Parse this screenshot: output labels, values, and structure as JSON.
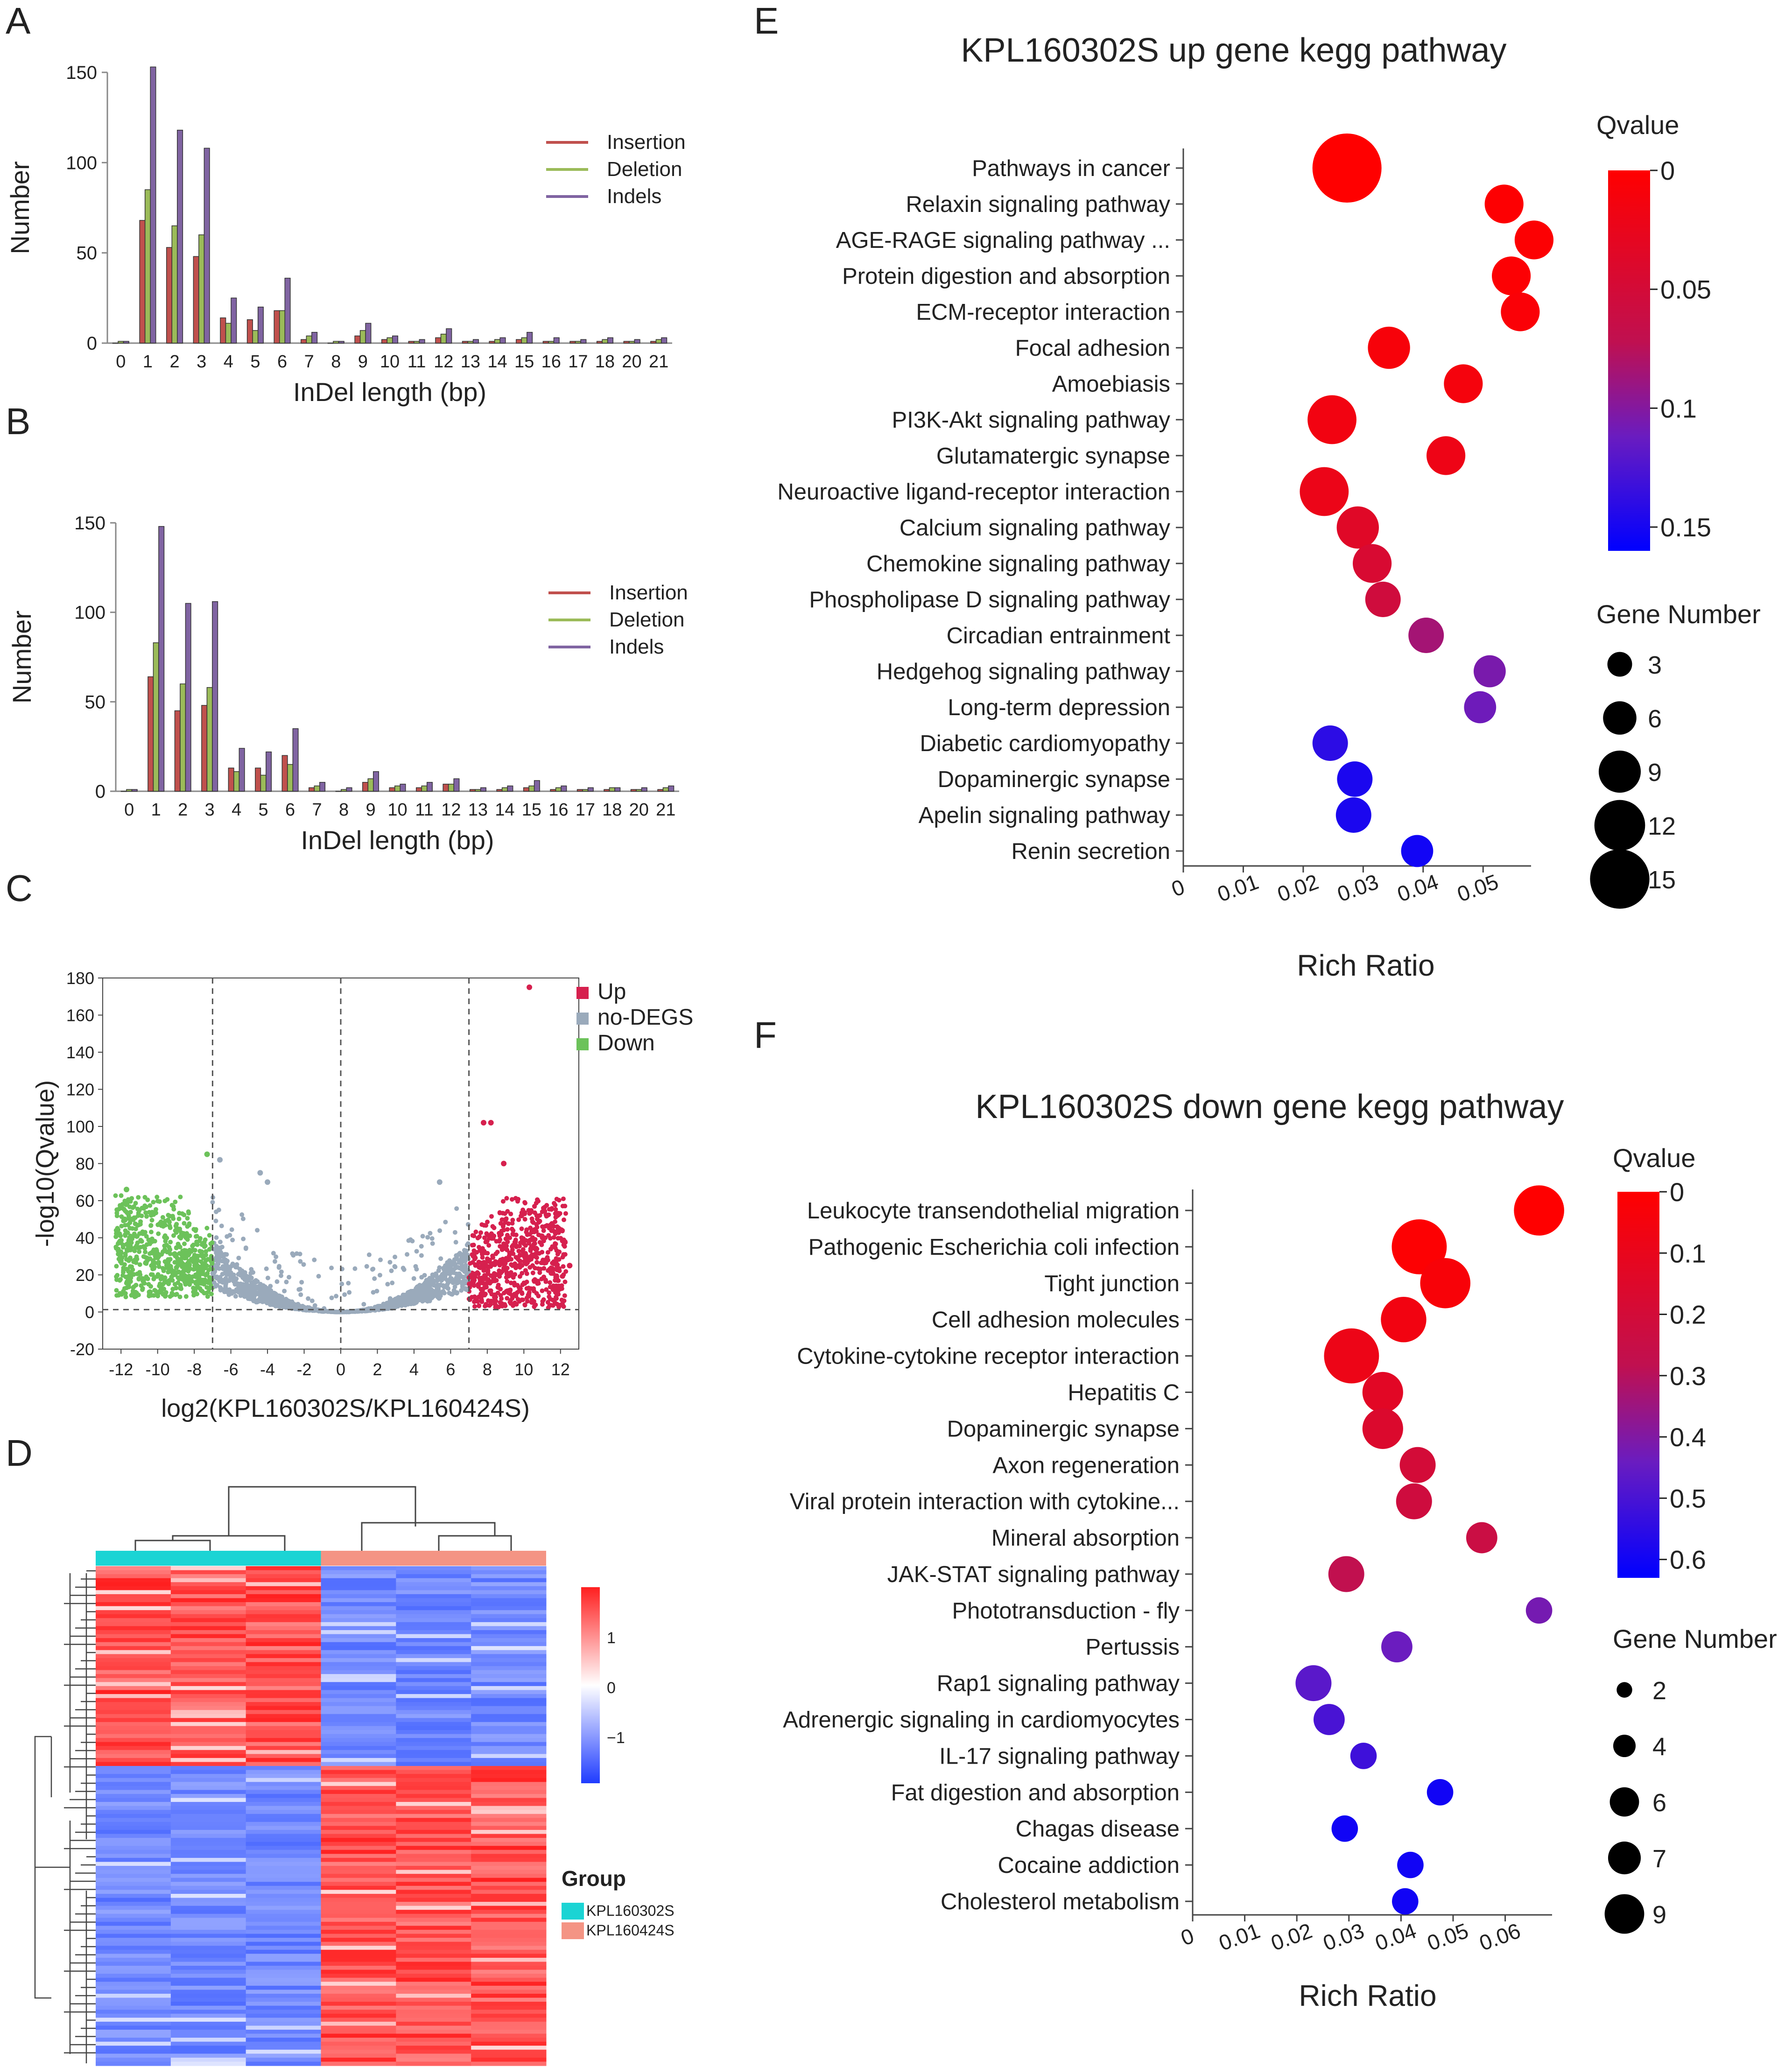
{
  "panel_letters": {
    "A": "A",
    "B": "B",
    "C": "C",
    "D": "D",
    "E": "E",
    "F": "F"
  },
  "colors": {
    "insertion": "#c0504d",
    "deletion": "#9bbb59",
    "indels": "#8064a2",
    "up": "#d6204e",
    "nodegs": "#9aaabb",
    "down": "#6cc25a",
    "heat_high": "#ff2020",
    "heat_low": "#3050ff",
    "group1": "#1bd4d4",
    "group2": "#f49484"
  },
  "chart_data": [
    {
      "id": "A",
      "type": "bar",
      "title": "",
      "xlabel": "InDel length (bp)",
      "ylabel": "Number",
      "ylim": [
        0,
        150
      ],
      "yticks": [
        "0",
        "50",
        "100",
        "150"
      ],
      "categories": [
        "0",
        "1",
        "2",
        "3",
        "4",
        "5",
        "6",
        "7",
        "8",
        "9",
        "10",
        "11",
        "12",
        "13",
        "14",
        "15",
        "16",
        "17",
        "18",
        "20",
        "21"
      ],
      "series": [
        {
          "name": "Insertion",
          "values": [
            0,
            68,
            53,
            48,
            14,
            13,
            18,
            2,
            0,
            4,
            2,
            1,
            3,
            1,
            1,
            2,
            1,
            1,
            1,
            1,
            1
          ]
        },
        {
          "name": "Deletion",
          "values": [
            1,
            85,
            65,
            60,
            11,
            7,
            18,
            4,
            1,
            7,
            3,
            1,
            5,
            1,
            2,
            3,
            1,
            1,
            2,
            1,
            2
          ]
        },
        {
          "name": "Indels",
          "values": [
            1,
            153,
            118,
            108,
            25,
            20,
            36,
            6,
            1,
            11,
            4,
            2,
            8,
            2,
            3,
            6,
            3,
            2,
            3,
            2,
            3
          ]
        }
      ]
    },
    {
      "id": "B",
      "type": "bar",
      "title": "",
      "xlabel": "InDel length (bp)",
      "ylabel": "Number",
      "ylim": [
        0,
        150
      ],
      "yticks": [
        "0",
        "50",
        "100",
        "150"
      ],
      "categories": [
        "0",
        "1",
        "2",
        "3",
        "4",
        "5",
        "6",
        "7",
        "8",
        "9",
        "10",
        "11",
        "12",
        "13",
        "14",
        "15",
        "16",
        "17",
        "18",
        "20",
        "21"
      ],
      "series": [
        {
          "name": "Insertion",
          "values": [
            0,
            64,
            45,
            48,
            13,
            13,
            20,
            2,
            0,
            5,
            2,
            2,
            4,
            1,
            1,
            2,
            1,
            1,
            1,
            1,
            1
          ]
        },
        {
          "name": "Deletion",
          "values": [
            1,
            83,
            60,
            58,
            11,
            9,
            15,
            3,
            1,
            7,
            3,
            3,
            4,
            1,
            2,
            3,
            2,
            1,
            2,
            1,
            2
          ]
        },
        {
          "name": "Indels",
          "values": [
            1,
            148,
            105,
            106,
            24,
            22,
            35,
            5,
            2,
            11,
            4,
            5,
            7,
            2,
            3,
            6,
            3,
            2,
            2,
            2,
            3
          ]
        }
      ]
    },
    {
      "id": "C",
      "type": "scatter",
      "title": "",
      "xlabel": "log2(KPL160302S/KPL160424S)",
      "ylabel": "-log10(Qvalue)",
      "xlim": [
        -13,
        13
      ],
      "ylim": [
        -20,
        180
      ],
      "xticks": [
        "-12",
        "-10",
        "-8",
        "-6",
        "-4",
        "-2",
        "0",
        "2",
        "4",
        "6",
        "8",
        "10",
        "12"
      ],
      "yticks": [
        "-20",
        "0",
        "20",
        "40",
        "60",
        "80",
        "100",
        "120",
        "140",
        "160",
        "180"
      ],
      "thresholds_x": [
        -7,
        0,
        7
      ],
      "threshold_y": 1.3,
      "legend": [
        "Up",
        "no-DEGS",
        "Down"
      ],
      "highlight_points": [
        {
          "x": 10.3,
          "y": 175,
          "group": "Up"
        },
        {
          "x": 7.8,
          "y": 102,
          "group": "Up"
        },
        {
          "x": 8.2,
          "y": 102,
          "group": "Up"
        },
        {
          "x": 8.9,
          "y": 80,
          "group": "Up"
        },
        {
          "x": -11.7,
          "y": 66,
          "group": "Down"
        },
        {
          "x": -7.3,
          "y": 85,
          "group": "Down"
        },
        {
          "x": -6.6,
          "y": 82,
          "group": "no-DEGS"
        },
        {
          "x": -4.4,
          "y": 75,
          "group": "no-DEGS"
        },
        {
          "x": -4.0,
          "y": 70,
          "group": "no-DEGS"
        },
        {
          "x": 5.4,
          "y": 70,
          "group": "no-DEGS"
        },
        {
          "x": 12.5,
          "y": 25,
          "group": "Up"
        },
        {
          "x": 11.5,
          "y": 21,
          "group": "Up"
        }
      ]
    },
    {
      "id": "D",
      "type": "heatmap",
      "title": "",
      "scale_ticks": [
        "1",
        "0",
        "−1"
      ],
      "group_title": "Group",
      "groups": [
        "KPL160302S",
        "KPL160424S"
      ]
    },
    {
      "id": "E",
      "type": "scatter",
      "title": "KPL160302S up gene kegg pathway",
      "xlabel": "Rich Ratio",
      "xlim": [
        0,
        0.058
      ],
      "xticks": [
        "0",
        "0.01",
        "0.02",
        "0.03",
        "0.04",
        "0.05"
      ],
      "color_title": "Qvalue",
      "color_ticks": [
        "0",
        "0.05",
        "0.1",
        "0.15"
      ],
      "size_title": "Gene Number",
      "size_ticks": [
        "3",
        "6",
        "9",
        "12",
        "15"
      ],
      "points": [
        {
          "term": "Pathways in cancer",
          "rich_ratio": 0.0273,
          "q": 0.0,
          "genes": 15
        },
        {
          "term": "Relaxin signaling pathway",
          "rich_ratio": 0.0535,
          "q": 0.002,
          "genes": 6
        },
        {
          "term": "AGE-RAGE signaling pathway ...",
          "rich_ratio": 0.0585,
          "q": 0.003,
          "genes": 6
        },
        {
          "term": "Protein digestion and absorption",
          "rich_ratio": 0.0547,
          "q": 0.004,
          "genes": 6
        },
        {
          "term": "ECM-receptor interaction",
          "rich_ratio": 0.0562,
          "q": 0.006,
          "genes": 6
        },
        {
          "term": "Focal adhesion",
          "rich_ratio": 0.0343,
          "q": 0.009,
          "genes": 7
        },
        {
          "term": "Amoebiasis",
          "rich_ratio": 0.0467,
          "q": 0.012,
          "genes": 6
        },
        {
          "term": "PI3K-Akt signaling pathway",
          "rich_ratio": 0.0248,
          "q": 0.015,
          "genes": 9
        },
        {
          "term": "Glutamatergic synapse",
          "rich_ratio": 0.0438,
          "q": 0.02,
          "genes": 6
        },
        {
          "term": "Neuroactive ligand-receptor interaction",
          "rich_ratio": 0.0235,
          "q": 0.022,
          "genes": 9
        },
        {
          "term": "Calcium signaling pathway",
          "rich_ratio": 0.0291,
          "q": 0.035,
          "genes": 7
        },
        {
          "term": "Chemokine signaling pathway",
          "rich_ratio": 0.0315,
          "q": 0.045,
          "genes": 6
        },
        {
          "term": "Phospholipase D signaling pathway",
          "rich_ratio": 0.0333,
          "q": 0.055,
          "genes": 5
        },
        {
          "term": "Circadian entrainment",
          "rich_ratio": 0.0405,
          "q": 0.085,
          "genes": 5
        },
        {
          "term": "Hedgehog signaling pathway",
          "rich_ratio": 0.0511,
          "q": 0.105,
          "genes": 4
        },
        {
          "term": "Long-term depression",
          "rich_ratio": 0.0495,
          "q": 0.11,
          "genes": 4
        },
        {
          "term": "Diabetic cardiomyopathy",
          "rich_ratio": 0.0245,
          "q": 0.14,
          "genes": 5
        },
        {
          "term": "Dopaminergic synapse",
          "rich_ratio": 0.0286,
          "q": 0.148,
          "genes": 5
        },
        {
          "term": "Apelin signaling pathway",
          "rich_ratio": 0.0284,
          "q": 0.148,
          "genes": 5
        },
        {
          "term": "Renin secretion",
          "rich_ratio": 0.039,
          "q": 0.152,
          "genes": 4
        }
      ]
    },
    {
      "id": "F",
      "type": "scatter",
      "title": "KPL160302S down gene kegg pathway",
      "xlabel": "Rich Ratio",
      "xlim": [
        0,
        0.069
      ],
      "xticks": [
        "0",
        "0.01",
        "0.02",
        "0.03",
        "0.04",
        "0.05",
        "0.06"
      ],
      "color_title": "Qvalue",
      "color_ticks": [
        "0",
        "0.1",
        "0.2",
        "0.3",
        "0.4",
        "0.5",
        "0.6"
      ],
      "size_title": "Gene Number",
      "size_ticks": [
        "2",
        "4",
        "6",
        "7",
        "9"
      ],
      "points": [
        {
          "term": "Leukocyte transendothelial migration",
          "rich_ratio": 0.0665,
          "q": 0.0,
          "genes": 8
        },
        {
          "term": "Pathogenic Escherichia coli infection",
          "rich_ratio": 0.0435,
          "q": 0.01,
          "genes": 9
        },
        {
          "term": "Tight junction",
          "rich_ratio": 0.0485,
          "q": 0.03,
          "genes": 8
        },
        {
          "term": "Cell adhesion molecules",
          "rich_ratio": 0.0405,
          "q": 0.06,
          "genes": 7
        },
        {
          "term": "Cytokine-cytokine receptor interaction",
          "rich_ratio": 0.0305,
          "q": 0.08,
          "genes": 9
        },
        {
          "term": "Hepatitis C",
          "rich_ratio": 0.0365,
          "q": 0.13,
          "genes": 6
        },
        {
          "term": "Dopaminergic synapse",
          "rich_ratio": 0.0365,
          "q": 0.16,
          "genes": 6
        },
        {
          "term": "Axon regeneration",
          "rich_ratio": 0.0432,
          "q": 0.2,
          "genes": 5
        },
        {
          "term": "Viral protein interaction with cytokine...",
          "rich_ratio": 0.0425,
          "q": 0.22,
          "genes": 5
        },
        {
          "term": "Mineral absorption",
          "rich_ratio": 0.0555,
          "q": 0.24,
          "genes": 4
        },
        {
          "term": "JAK-STAT signaling pathway",
          "rich_ratio": 0.0295,
          "q": 0.28,
          "genes": 5
        },
        {
          "term": "Phototransduction - fly",
          "rich_ratio": 0.0665,
          "q": 0.42,
          "genes": 3
        },
        {
          "term": "Pertussis",
          "rich_ratio": 0.0392,
          "q": 0.44,
          "genes": 4
        },
        {
          "term": "Rap1 signaling pathway",
          "rich_ratio": 0.0232,
          "q": 0.47,
          "genes": 5
        },
        {
          "term": "Adrenergic signaling in cardiomyocytes",
          "rich_ratio": 0.0262,
          "q": 0.5,
          "genes": 4
        },
        {
          "term": "IL-17 signaling pathway",
          "rich_ratio": 0.0328,
          "q": 0.52,
          "genes": 3
        },
        {
          "term": "Fat digestion and absorption",
          "rich_ratio": 0.0475,
          "q": 0.6,
          "genes": 3
        },
        {
          "term": "Chagas disease",
          "rich_ratio": 0.0292,
          "q": 0.6,
          "genes": 3
        },
        {
          "term": "Cocaine addiction",
          "rich_ratio": 0.0418,
          "q": 0.6,
          "genes": 3
        },
        {
          "term": "Cholesterol metabolism",
          "rich_ratio": 0.0408,
          "q": 0.6,
          "genes": 3
        }
      ]
    }
  ]
}
